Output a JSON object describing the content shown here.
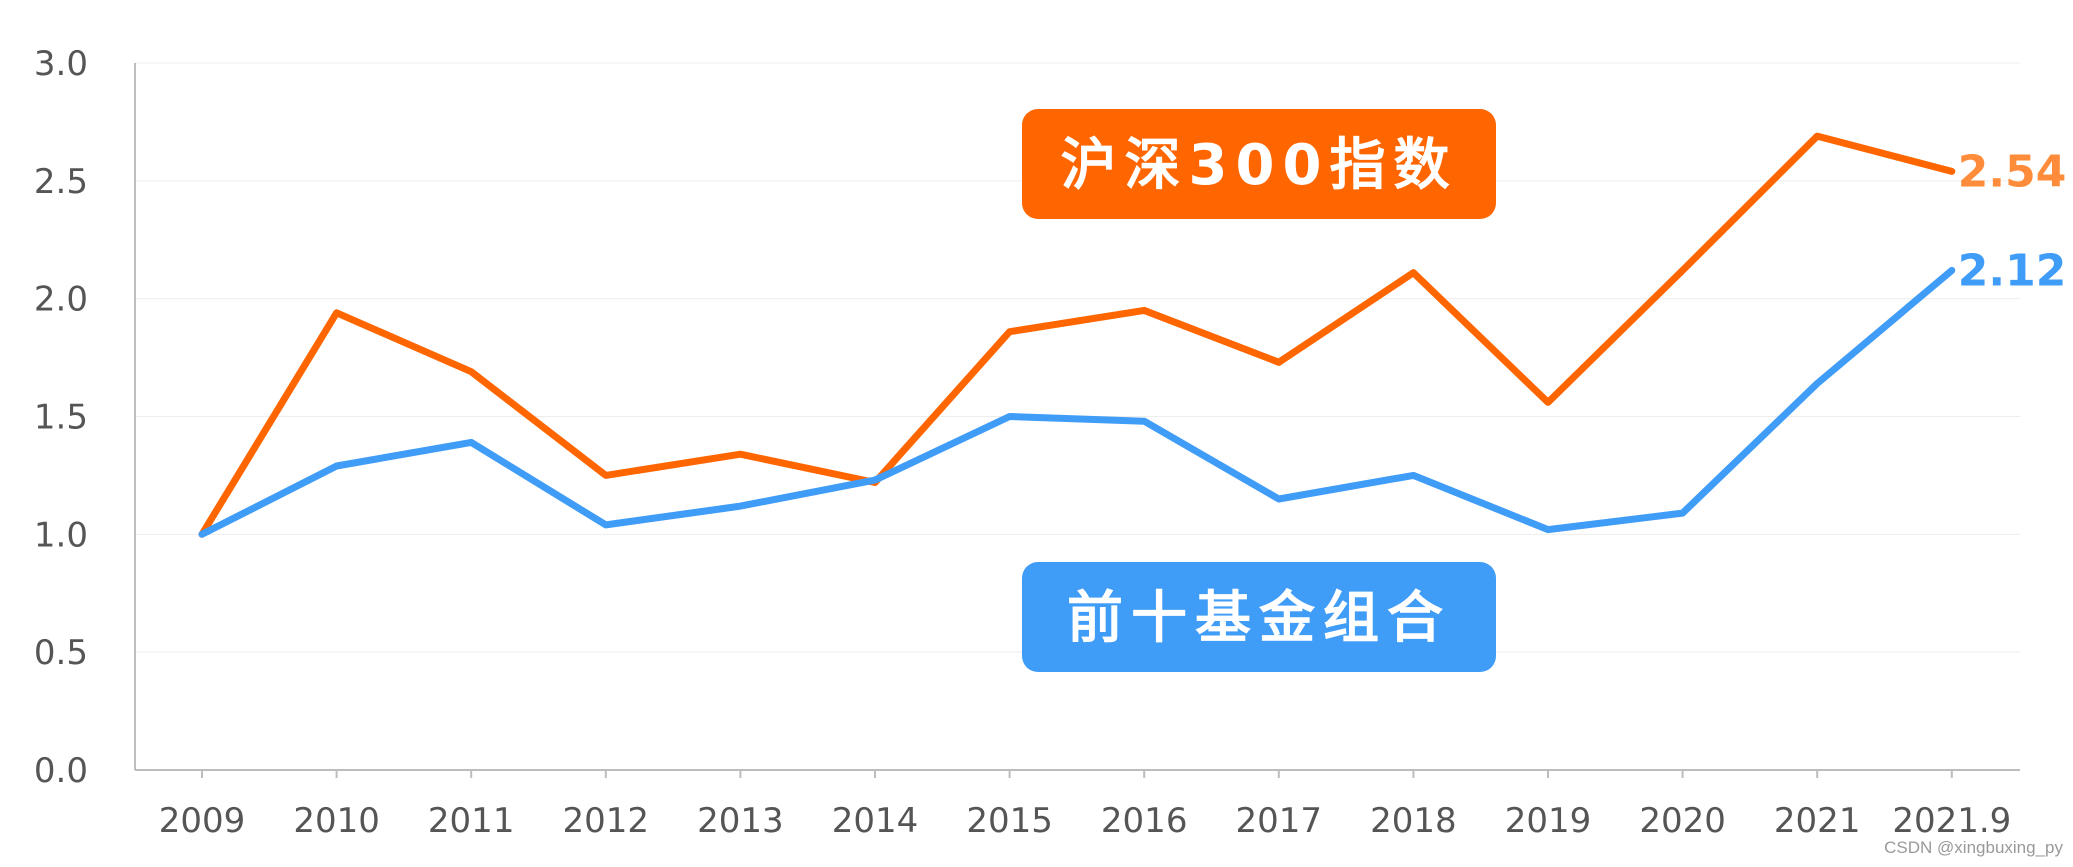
{
  "chart_data": {
    "type": "line",
    "categories": [
      "2009",
      "2010",
      "2011",
      "2012",
      "2013",
      "2014",
      "2015",
      "2016",
      "2017",
      "2018",
      "2019",
      "2020",
      "2021",
      "2021.9"
    ],
    "ylim": [
      0,
      3.0
    ],
    "yticks": [
      "0.0",
      "0.5",
      "1.0",
      "1.5",
      "2.0",
      "2.5",
      "3.0"
    ],
    "grid": true,
    "series": [
      {
        "name": "沪深300指数",
        "color": "#FF6600",
        "values": [
          1.0,
          1.94,
          1.69,
          1.25,
          1.34,
          1.22,
          1.86,
          1.95,
          1.73,
          2.11,
          1.56,
          2.12,
          2.69,
          2.54
        ],
        "end_label": "2.54",
        "end_label_color": "#FF8C3A"
      },
      {
        "name": "前十基金组合",
        "color": "#3F9CF7",
        "values": [
          1.0,
          1.29,
          1.39,
          1.04,
          1.12,
          1.23,
          1.5,
          1.48,
          1.15,
          1.25,
          1.02,
          1.09,
          1.64,
          2.12
        ],
        "end_label": "2.12",
        "end_label_color": "#3F9CF7"
      }
    ]
  },
  "watermark": "CSDN @xingbuxing_py"
}
